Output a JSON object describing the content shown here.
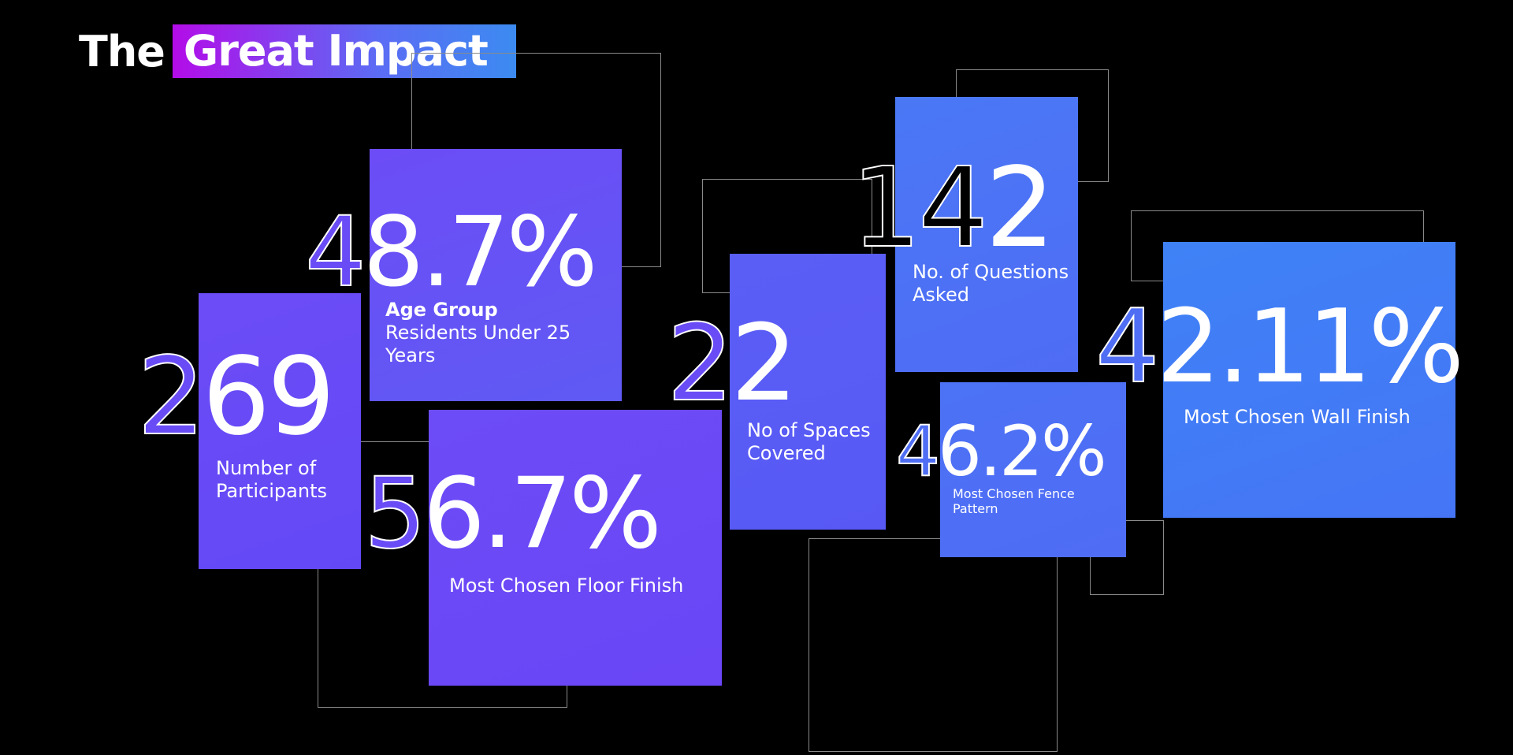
{
  "title": {
    "prefix": "The",
    "highlight": "Great Impact"
  },
  "stats": {
    "age_group": {
      "lead": "4",
      "rest": "8.7%",
      "label_bold": "Age Group",
      "label": "Residents Under 25 Years"
    },
    "participants": {
      "lead": "2",
      "rest": "69",
      "label_line1": "Number of",
      "label_line2": "Participants"
    },
    "floor": {
      "lead": "5",
      "rest": "6.7%",
      "label": "Most Chosen Floor Finish"
    },
    "spaces": {
      "lead": "2",
      "rest": "2",
      "label_line1": "No of Spaces",
      "label_line2": "Covered"
    },
    "questions": {
      "lead": "1",
      "rest_outline": "4",
      "rest": "2",
      "label_line1": "No. of Questions",
      "label_line2": "Asked"
    },
    "fence": {
      "lead": "4",
      "rest": "6.2%",
      "label_line1": "Most Chosen Fence",
      "label_line2": "Pattern"
    },
    "wall": {
      "lead": "4",
      "rest": "2.11%",
      "label": "Most Chosen Wall Finish"
    }
  },
  "colors": {
    "violet": "#6a4cf6",
    "blue": "#3f7ef6",
    "background": "#000000"
  }
}
